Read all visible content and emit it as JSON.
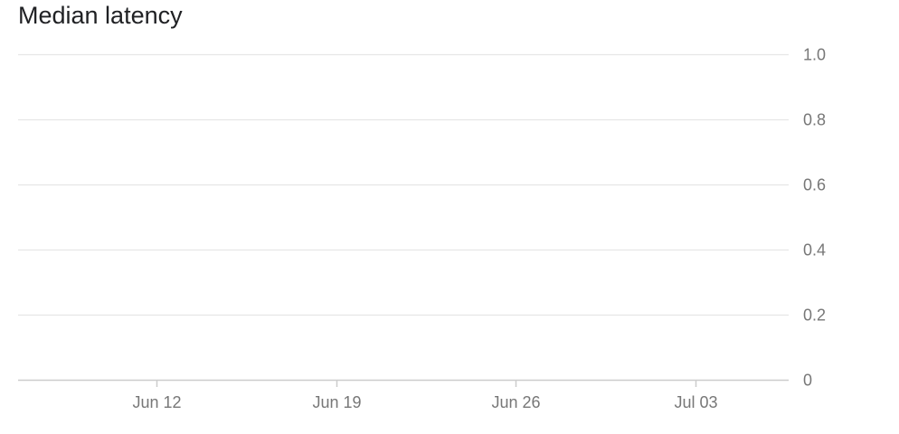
{
  "chart_data": {
    "type": "line",
    "title": "Median latency",
    "xlabel": "",
    "ylabel": "",
    "x_tick_labels": [
      "Jun 12",
      "Jun 19",
      "Jun 26",
      "Jul 03"
    ],
    "y_tick_labels": [
      "0",
      "0.2",
      "0.4",
      "0.6",
      "0.8",
      "1.0"
    ],
    "x": [
      "2023-06-12",
      "2023-06-19",
      "2023-06-26",
      "2023-07-03"
    ],
    "ylim": [
      0,
      1.0
    ],
    "y_ticks": [
      0,
      0.2,
      0.4,
      0.6,
      0.8,
      1.0
    ],
    "grid": true,
    "series": []
  },
  "colors": {
    "gridline": "#e6e6e6",
    "axis": "#cccccc",
    "tick_text": "#777777",
    "title_text": "#202124"
  }
}
